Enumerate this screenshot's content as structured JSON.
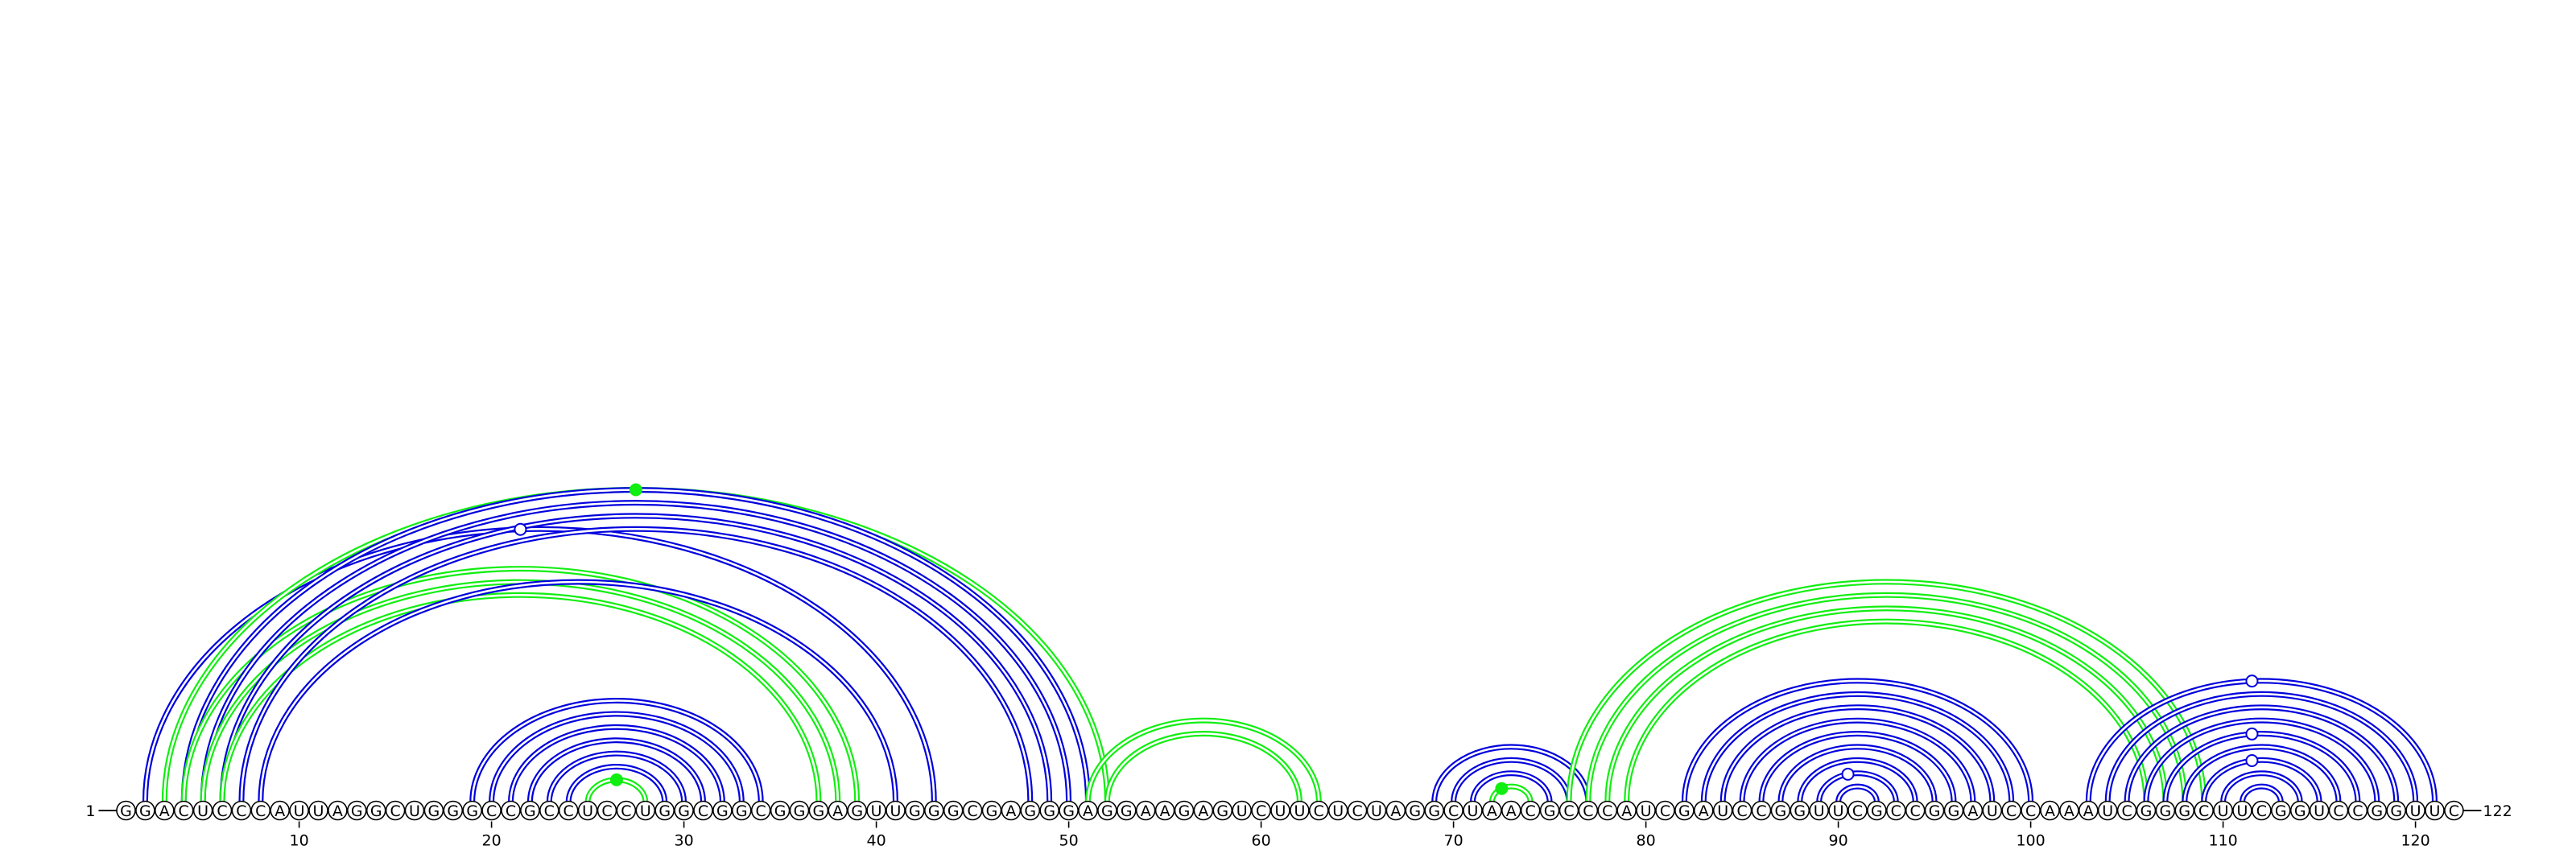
{
  "sequence": "GGACUCCCAUUAGGCUGGGCCGCCUCCUGGCGGCGGGAGUUGGGCGAGGGAGGAAGAGUCUUCUCUAGGCUAACGCCCAUCGAUCCGGUUCGCCGGAUCCAAAUCGGGCUUCGGUCCGGUUC",
  "start_label": "1",
  "end_label": "122",
  "ticks": [
    10,
    20,
    30,
    40,
    50,
    60,
    70,
    80,
    90,
    100,
    110,
    120
  ],
  "colors": {
    "blue": "#0000dd",
    "green": "#11ee11"
  },
  "arcs": [
    {
      "i": 2,
      "j": 43,
      "color": "blue"
    },
    {
      "i": 3,
      "j": 52,
      "color": "green"
    },
    {
      "i": 4,
      "j": 51,
      "color": "blue"
    },
    {
      "i": 4,
      "j": 39,
      "color": "green"
    },
    {
      "i": 5,
      "j": 50,
      "color": "blue"
    },
    {
      "i": 5,
      "j": 38,
      "color": "green"
    },
    {
      "i": 6,
      "j": 49,
      "color": "blue"
    },
    {
      "i": 6,
      "j": 37,
      "color": "green"
    },
    {
      "i": 7,
      "j": 48,
      "color": "blue"
    },
    {
      "i": 8,
      "j": 41,
      "color": "blue"
    },
    {
      "i": 19,
      "j": 34,
      "color": "blue"
    },
    {
      "i": 20,
      "j": 33,
      "color": "blue"
    },
    {
      "i": 21,
      "j": 32,
      "color": "blue"
    },
    {
      "i": 22,
      "j": 31,
      "color": "blue"
    },
    {
      "i": 23,
      "j": 30,
      "color": "blue"
    },
    {
      "i": 24,
      "j": 29,
      "color": "blue"
    },
    {
      "i": 25,
      "j": 28,
      "color": "green"
    },
    {
      "i": 51,
      "j": 63,
      "color": "green"
    },
    {
      "i": 52,
      "j": 62,
      "color": "green"
    },
    {
      "i": 69,
      "j": 77,
      "color": "blue"
    },
    {
      "i": 70,
      "j": 76,
      "color": "blue"
    },
    {
      "i": 71,
      "j": 75,
      "color": "blue"
    },
    {
      "i": 72,
      "j": 74,
      "color": "green"
    },
    {
      "i": 76,
      "j": 109,
      "color": "green"
    },
    {
      "i": 77,
      "j": 108,
      "color": "green"
    },
    {
      "i": 78,
      "j": 107,
      "color": "green"
    },
    {
      "i": 79,
      "j": 106,
      "color": "green"
    },
    {
      "i": 82,
      "j": 100,
      "color": "blue"
    },
    {
      "i": 83,
      "j": 99,
      "color": "blue"
    },
    {
      "i": 84,
      "j": 98,
      "color": "blue"
    },
    {
      "i": 85,
      "j": 97,
      "color": "blue"
    },
    {
      "i": 86,
      "j": 96,
      "color": "blue"
    },
    {
      "i": 87,
      "j": 95,
      "color": "blue"
    },
    {
      "i": 88,
      "j": 94,
      "color": "blue"
    },
    {
      "i": 89,
      "j": 93,
      "color": "blue"
    },
    {
      "i": 90,
      "j": 92,
      "color": "blue"
    },
    {
      "i": 103,
      "j": 121,
      "color": "blue"
    },
    {
      "i": 104,
      "j": 120,
      "color": "blue"
    },
    {
      "i": 105,
      "j": 119,
      "color": "blue"
    },
    {
      "i": 106,
      "j": 118,
      "color": "blue"
    },
    {
      "i": 107,
      "j": 117,
      "color": "blue"
    },
    {
      "i": 108,
      "j": 116,
      "color": "blue"
    },
    {
      "i": 109,
      "j": 115,
      "color": "blue"
    },
    {
      "i": 110,
      "j": 114,
      "color": "blue"
    },
    {
      "i": 111,
      "j": 113,
      "color": "blue"
    }
  ],
  "markers": [
    {
      "pos": 27.5,
      "arc_i": 3,
      "arc_j": 52,
      "fill": "green"
    },
    {
      "pos": 21.5,
      "arc_i": 2,
      "arc_j": 43,
      "fill": "white"
    },
    {
      "pos": 26.5,
      "arc_i": 25,
      "arc_j": 28,
      "fill": "green"
    },
    {
      "pos": 72.5,
      "arc_i": 72,
      "arc_j": 74,
      "fill": "green"
    },
    {
      "pos": 90.5,
      "arc_i": 89,
      "arc_j": 93,
      "fill": "white"
    },
    {
      "pos": 111.5,
      "arc_i": 103,
      "arc_j": 121,
      "fill": "white"
    },
    {
      "pos": 111.5,
      "arc_i": 107,
      "arc_j": 117,
      "fill": "white"
    },
    {
      "pos": 111.5,
      "arc_i": 109,
      "arc_j": 115,
      "fill": "white"
    }
  ]
}
